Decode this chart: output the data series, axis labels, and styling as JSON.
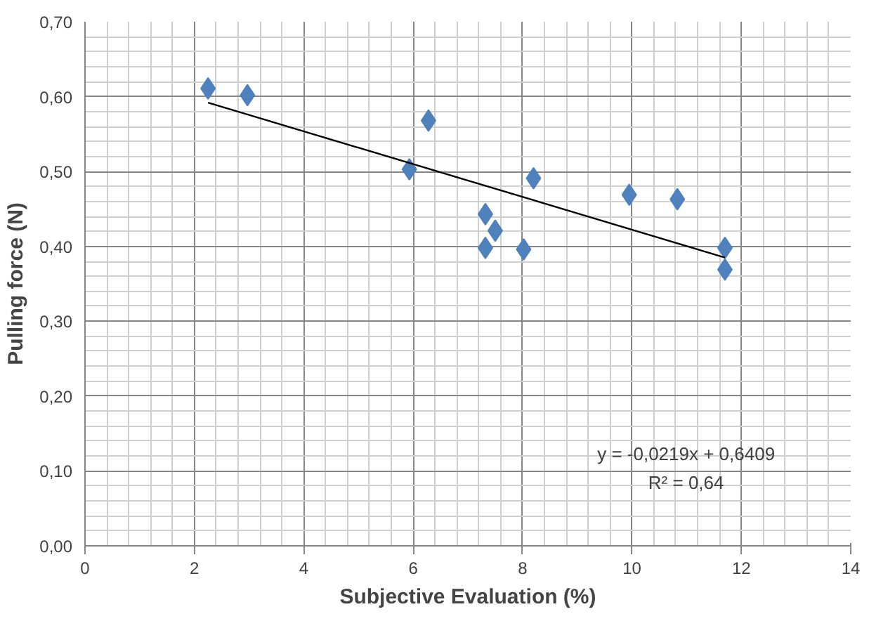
{
  "chart_data": {
    "type": "scatter",
    "xlabel": "Subjective Evaluation (%)",
    "ylabel": "Pulling force (N)",
    "xlim": [
      0,
      14
    ],
    "ylim": [
      0,
      0.7
    ],
    "xticks": [
      0,
      2,
      4,
      6,
      8,
      10,
      12,
      14
    ],
    "yticks": [
      {
        "value": 0,
        "label": "0,00"
      },
      {
        "value": 0.1,
        "label": "0,10"
      },
      {
        "value": 0.2,
        "label": "0,20"
      },
      {
        "value": 0.3,
        "label": "0,30"
      },
      {
        "value": 0.4,
        "label": "0,40"
      },
      {
        "value": 0.5,
        "label": "0,50"
      },
      {
        "value": 0.6,
        "label": "0,60"
      },
      {
        "value": 0.7,
        "label": "0,70"
      }
    ],
    "grid": true,
    "marker": "diamond",
    "series": [
      {
        "color": "#4f81bd",
        "x": [
          2.25,
          2.97,
          5.93,
          6.28,
          7.32,
          7.5,
          7.32,
          8.02,
          8.2,
          9.95,
          10.83,
          11.7,
          11.7
        ],
        "values": [
          0.611,
          0.602,
          0.503,
          0.568,
          0.443,
          0.421,
          0.398,
          0.396,
          0.491,
          0.469,
          0.463,
          0.398,
          0.369
        ]
      },
      {
        "type": "line",
        "marker": "none",
        "color": "#000000",
        "x": [
          2.25,
          11.7
        ],
        "values": [
          0.592,
          0.385
        ]
      }
    ],
    "annotations": [
      "y = -0,0219x + 0,6409",
      "R² = 0,64"
    ]
  }
}
